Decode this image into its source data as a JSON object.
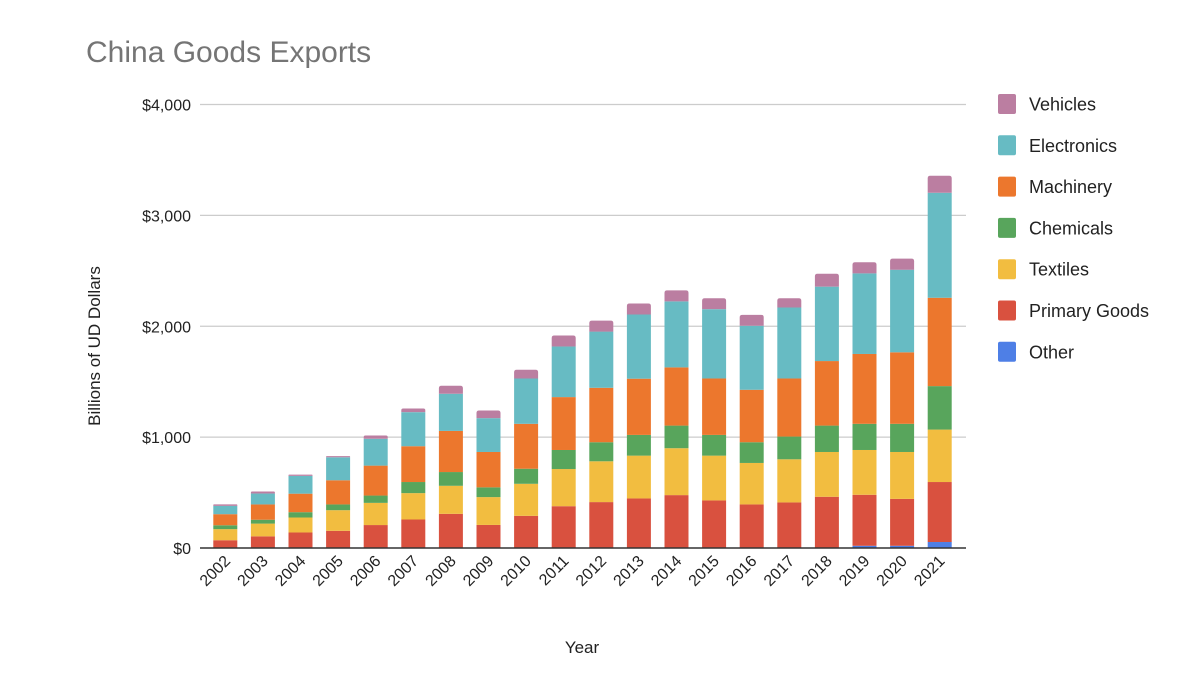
{
  "chart_data": {
    "type": "bar",
    "stacked": true,
    "title": "China Goods Exports",
    "xlabel": "Year",
    "ylabel": "Billions of UD Dollars",
    "ylim": [
      0,
      4000
    ],
    "yticks": [
      0,
      1000,
      2000,
      3000,
      4000
    ],
    "ytick_labels": [
      "$0",
      "$1,000",
      "$2,000",
      "$3,000",
      "$4,000"
    ],
    "grid": true,
    "legend_position": "right",
    "categories": [
      "2002",
      "2003",
      "2004",
      "2005",
      "2006",
      "2007",
      "2008",
      "2009",
      "2010",
      "2011",
      "2012",
      "2013",
      "2014",
      "2015",
      "2016",
      "2017",
      "2018",
      "2019",
      "2020",
      "2021"
    ],
    "series": [
      {
        "name": "Other",
        "color": "#4e7fe6",
        "values": [
          0,
          0,
          0,
          0,
          0,
          0,
          0,
          0,
          0,
          0,
          0,
          0,
          0,
          0,
          0,
          0,
          0,
          20,
          20,
          54
        ]
      },
      {
        "name": "Primary Goods",
        "color": "#d9513f",
        "values": [
          70,
          105,
          140,
          155,
          207,
          257,
          308,
          208,
          290,
          377,
          414,
          447,
          477,
          429,
          393,
          411,
          462,
          460,
          423,
          541
        ]
      },
      {
        "name": "Textiles",
        "color": "#f2bd40",
        "values": [
          100,
          115,
          135,
          186,
          200,
          238,
          253,
          251,
          289,
          335,
          368,
          386,
          423,
          404,
          374,
          389,
          404,
          404,
          423,
          473
        ]
      },
      {
        "name": "Chemicals",
        "color": "#58a55c",
        "values": [
          35,
          35,
          48,
          52,
          66,
          100,
          124,
          88,
          136,
          172,
          172,
          187,
          204,
          187,
          187,
          205,
          238,
          236,
          254,
          392
        ]
      },
      {
        "name": "Machinery",
        "color": "#ec772d",
        "values": [
          100,
          138,
          167,
          218,
          270,
          323,
          371,
          319,
          405,
          477,
          491,
          507,
          525,
          509,
          473,
          524,
          582,
          630,
          645,
          797
        ]
      },
      {
        "name": "Electronics",
        "color": "#67bbc3",
        "values": [
          75,
          98,
          160,
          207,
          242,
          307,
          335,
          305,
          409,
          456,
          507,
          579,
          595,
          625,
          577,
          640,
          671,
          727,
          745,
          947
        ]
      },
      {
        "name": "Vehicles",
        "color": "#bb7ea1",
        "values": [
          13,
          19,
          12,
          11,
          30,
          33,
          72,
          69,
          79,
          100,
          99,
          99,
          99,
          99,
          99,
          84,
          117,
          100,
          100,
          153
        ]
      }
    ],
    "legend_order": [
      "Vehicles",
      "Electronics",
      "Machinery",
      "Chemicals",
      "Textiles",
      "Primary Goods",
      "Other"
    ]
  },
  "colors": {
    "background": "#ffffff",
    "gridline": "#cccccc",
    "axis": "#333333",
    "title": "#757575",
    "text": "#222222"
  }
}
